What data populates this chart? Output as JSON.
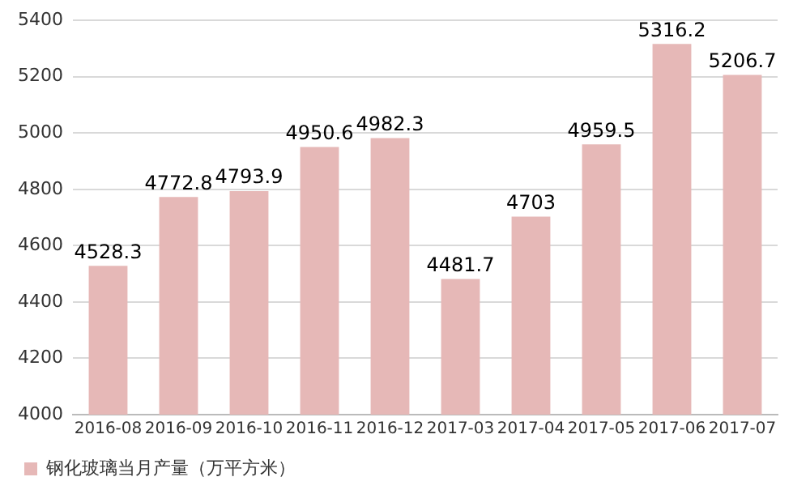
{
  "chart_data": {
    "type": "bar",
    "categories": [
      "2016-08",
      "2016-09",
      "2016-10",
      "2016-11",
      "2016-12",
      "2017-03",
      "2017-04",
      "2017-05",
      "2017-06",
      "2017-07"
    ],
    "series": [
      {
        "name": "钢化玻璃当月产量（万平方米）",
        "color": "#e6b8b7",
        "values": [
          4528.3,
          4772.8,
          4793.9,
          4950.6,
          4982.3,
          4481.7,
          4703,
          4959.5,
          5316.2,
          5206.7
        ]
      }
    ],
    "ylim": [
      4000,
      5400
    ],
    "yticks": [
      4000,
      4200,
      4400,
      4600,
      4800,
      5000,
      5200,
      5400
    ],
    "grid": "y",
    "legend": "bottom",
    "data_labels": true
  }
}
